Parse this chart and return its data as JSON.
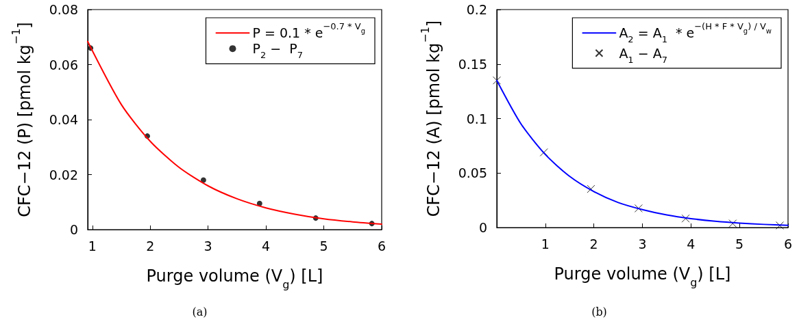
{
  "chart_data": [
    {
      "type": "line",
      "xlabel": "Purge volume (V$_{g}$) [L]",
      "ylabel": "CFC−12 (P) [pmol kg$^{−1}$]",
      "xlim": [
        0.92,
        6
      ],
      "xticks": [
        1,
        2,
        3,
        4,
        5,
        6
      ],
      "ylim": [
        0,
        0.08
      ],
      "yticks": [
        0,
        0.02,
        0.04,
        0.06,
        0.08
      ],
      "grid": false,
      "legend": "top right",
      "annotations": [
        "(a)"
      ],
      "series": [
        {
          "name": "P = 0.1 * e$^{−0.7 * V}$$_{g}$",
          "type": "line",
          "color": "#ff0000",
          "marker": "none",
          "line_style": "solid",
          "x": [
            0.92,
            1.5,
            2,
            2.5,
            3,
            3.5,
            4,
            4.5,
            5,
            5.5,
            6
          ],
          "values": [
            0.0684,
            0.0455,
            0.0321,
            0.0226,
            0.0159,
            0.0112,
            0.0079,
            0.0056,
            0.0039,
            0.0028,
            0.002
          ]
        },
        {
          "name": "P$_{2}$ −  P$_{7}$",
          "type": "scatter",
          "color": "#000000",
          "marker": "circle",
          "x": [
            0.97,
            1.95,
            2.92,
            3.89,
            4.86,
            5.83
          ],
          "values": [
            0.066,
            0.034,
            0.018,
            0.0095,
            0.0042,
            0.0022
          ]
        }
      ]
    },
    {
      "type": "line",
      "xlabel": "Purge volume (V$_{g}$) [L]",
      "ylabel": "CFC−12 (A) [pmol kg$^{−1}$]",
      "xlim": [
        0,
        6
      ],
      "xticks": [
        1,
        2,
        3,
        4,
        5,
        6
      ],
      "ylim": [
        0,
        0.2
      ],
      "yticks": [
        0,
        0.05,
        0.1,
        0.15,
        0.2
      ],
      "grid": false,
      "legend": "top right",
      "annotations": [
        "(b)"
      ],
      "series": [
        {
          "name": "A$_{2}$ = A$_{1}$  * e$^{−(H * F * V}$$_{g}$$^{) / V}$$_{w}$",
          "type": "line",
          "color": "#0000ff",
          "marker": "none",
          "line_style": "solid",
          "x": [
            0,
            0.5,
            1,
            1.5,
            2,
            2.5,
            3,
            3.5,
            4,
            4.5,
            5,
            5.5,
            6
          ],
          "values": [
            0.135,
            0.095,
            0.067,
            0.047,
            0.033,
            0.023,
            0.0165,
            0.0116,
            0.0082,
            0.0058,
            0.0041,
            0.0029,
            0.002
          ]
        },
        {
          "name": "A$_{1}$ − A$_{7}$",
          "type": "scatter",
          "color": "#000000",
          "marker": "cross",
          "x": [
            0,
            0.97,
            1.94,
            2.92,
            3.89,
            4.86,
            5.83
          ],
          "values": [
            0.135,
            0.069,
            0.0354,
            0.0176,
            0.0083,
            0.0037,
            0.0019
          ]
        }
      ]
    }
  ]
}
